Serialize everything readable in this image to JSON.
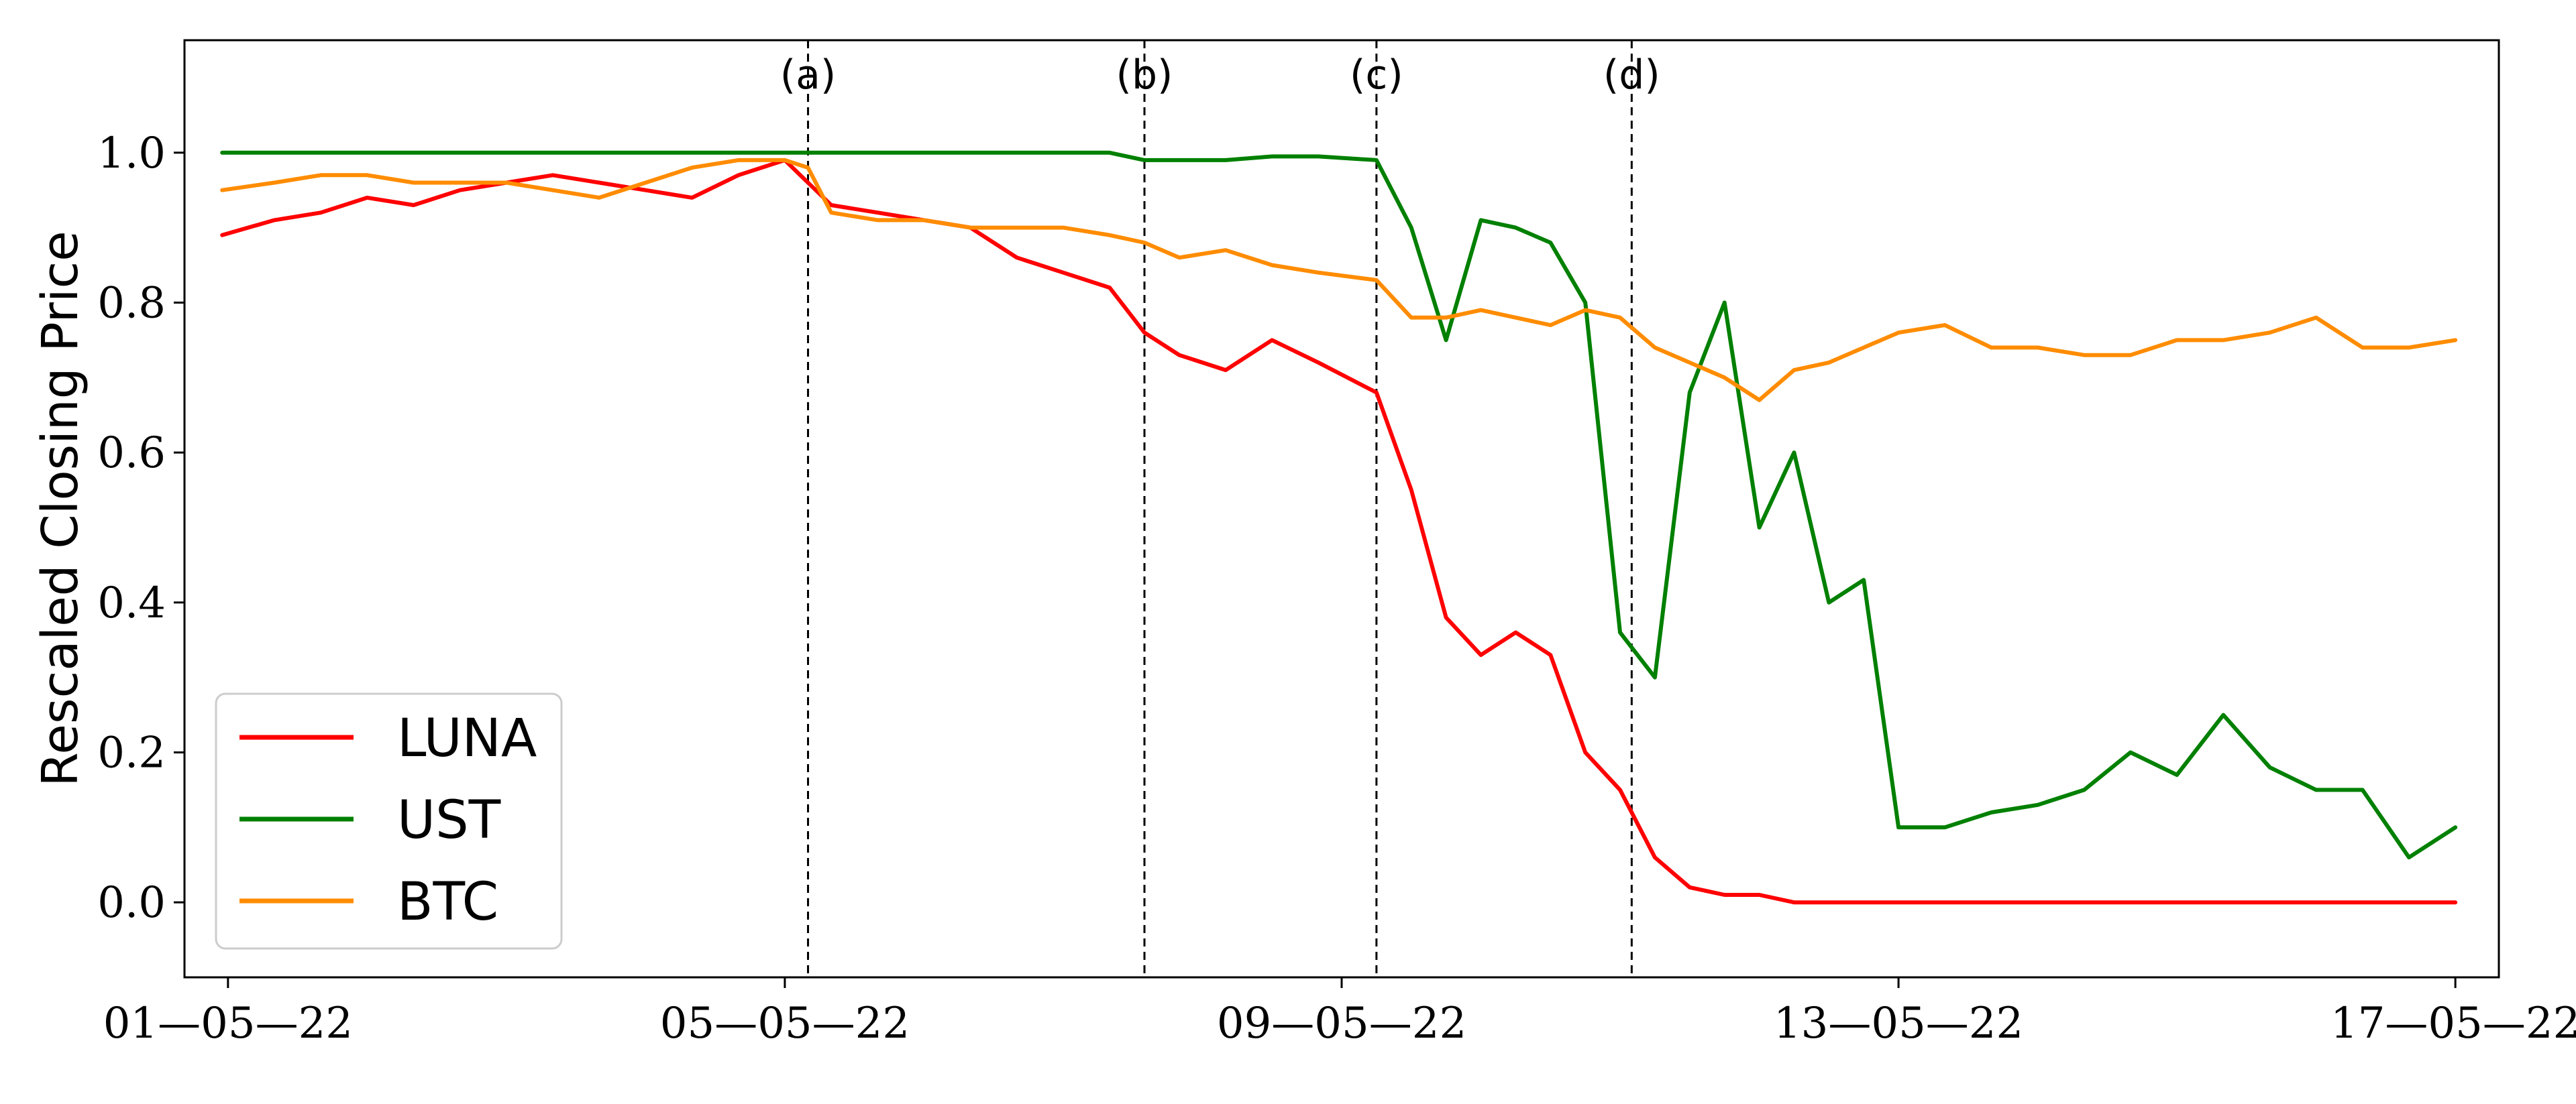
{
  "chart_data": {
    "type": "line",
    "title": "",
    "xlabel": "",
    "ylabel": "Rescaled Closing Price",
    "x_ticks": [
      "01—05—22",
      "05—05—22",
      "09—05—22",
      "13—05—22",
      "17—05—22"
    ],
    "y_ticks": [
      "0.0",
      "0.2",
      "0.4",
      "0.6",
      "0.8",
      "1.0"
    ],
    "xlim": [
      "2022-04-30T16:30",
      "2022-05-17T07:30"
    ],
    "ylim": [
      -0.1,
      1.15
    ],
    "grid": false,
    "legend_position": "lower-left",
    "annotations": [
      {
        "label": "(a)",
        "x": "2022-05-05T04:00"
      },
      {
        "label": "(b)",
        "x": "2022-05-07T14:00"
      },
      {
        "label": "(c)",
        "x": "2022-05-09T06:00"
      },
      {
        "label": "(d)",
        "x": "2022-05-11T02:00"
      }
    ],
    "x": [
      "2022-04-30T23:00",
      "2022-05-01T08:00",
      "2022-05-01T16:00",
      "2022-05-02T00:00",
      "2022-05-02T08:00",
      "2022-05-02T16:00",
      "2022-05-03T00:00",
      "2022-05-03T08:00",
      "2022-05-03T16:00",
      "2022-05-04T00:00",
      "2022-05-04T08:00",
      "2022-05-04T16:00",
      "2022-05-05T00:00",
      "2022-05-05T04:00",
      "2022-05-05T08:00",
      "2022-05-05T16:00",
      "2022-05-06T00:00",
      "2022-05-06T08:00",
      "2022-05-06T16:00",
      "2022-05-07T00:00",
      "2022-05-07T08:00",
      "2022-05-07T14:00",
      "2022-05-07T20:00",
      "2022-05-08T04:00",
      "2022-05-08T12:00",
      "2022-05-08T20:00",
      "2022-05-09T06:00",
      "2022-05-09T12:00",
      "2022-05-09T18:00",
      "2022-05-10T00:00",
      "2022-05-10T06:00",
      "2022-05-10T12:00",
      "2022-05-10T18:00",
      "2022-05-11T00:00",
      "2022-05-11T06:00",
      "2022-05-11T12:00",
      "2022-05-11T18:00",
      "2022-05-12T00:00",
      "2022-05-12T06:00",
      "2022-05-12T12:00",
      "2022-05-12T18:00",
      "2022-05-13T00:00",
      "2022-05-13T08:00",
      "2022-05-13T16:00",
      "2022-05-14T00:00",
      "2022-05-14T08:00",
      "2022-05-14T16:00",
      "2022-05-15T00:00",
      "2022-05-15T08:00",
      "2022-05-15T16:00",
      "2022-05-16T00:00",
      "2022-05-16T08:00",
      "2022-05-16T16:00",
      "2022-05-17T00:00"
    ],
    "series": [
      {
        "name": "LUNA",
        "color": "#ff0000",
        "values": [
          0.89,
          0.91,
          0.92,
          0.94,
          0.93,
          0.95,
          0.96,
          0.97,
          0.96,
          0.95,
          0.94,
          0.97,
          0.99,
          0.96,
          0.93,
          0.92,
          0.91,
          0.9,
          0.86,
          0.84,
          0.82,
          0.76,
          0.73,
          0.71,
          0.75,
          0.72,
          0.68,
          0.55,
          0.38,
          0.33,
          0.36,
          0.33,
          0.2,
          0.15,
          0.06,
          0.02,
          0.01,
          0.01,
          0.0,
          0.0,
          0.0,
          0.0,
          0.0,
          0.0,
          0.0,
          0.0,
          0.0,
          0.0,
          0.0,
          0.0,
          0.0,
          0.0,
          0.0,
          0.0
        ]
      },
      {
        "name": "UST",
        "color": "#008000",
        "values": [
          1.0,
          1.0,
          1.0,
          1.0,
          1.0,
          1.0,
          1.0,
          1.0,
          1.0,
          1.0,
          1.0,
          1.0,
          1.0,
          1.0,
          1.0,
          1.0,
          1.0,
          1.0,
          1.0,
          1.0,
          1.0,
          0.99,
          0.99,
          0.99,
          0.995,
          0.995,
          0.99,
          0.9,
          0.75,
          0.91,
          0.9,
          0.88,
          0.8,
          0.36,
          0.3,
          0.68,
          0.8,
          0.5,
          0.6,
          0.4,
          0.43,
          0.1,
          0.1,
          0.12,
          0.13,
          0.15,
          0.2,
          0.17,
          0.25,
          0.18,
          0.15,
          0.15,
          0.06,
          0.1
        ]
      },
      {
        "name": "BTC",
        "color": "#ff8c00",
        "values": [
          0.95,
          0.96,
          0.97,
          0.97,
          0.96,
          0.96,
          0.96,
          0.95,
          0.94,
          0.96,
          0.98,
          0.99,
          0.99,
          0.98,
          0.92,
          0.91,
          0.91,
          0.9,
          0.9,
          0.9,
          0.89,
          0.88,
          0.86,
          0.87,
          0.85,
          0.84,
          0.83,
          0.78,
          0.78,
          0.79,
          0.78,
          0.77,
          0.79,
          0.78,
          0.74,
          0.72,
          0.7,
          0.67,
          0.71,
          0.72,
          0.74,
          0.76,
          0.77,
          0.74,
          0.74,
          0.73,
          0.73,
          0.75,
          0.75,
          0.76,
          0.78,
          0.74,
          0.74,
          0.75
        ]
      }
    ]
  }
}
